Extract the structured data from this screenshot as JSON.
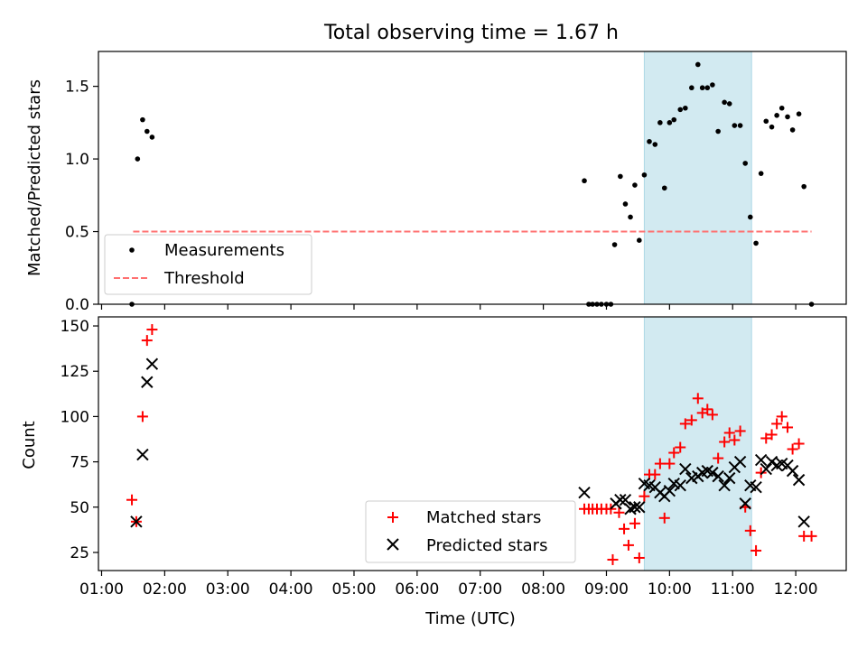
{
  "figure": {
    "title": "Total observing time = 1.67 h",
    "xlabel": "Time (UTC)"
  },
  "chart_data": [
    {
      "type": "scatter",
      "title": "Total observing time = 1.67 h",
      "ylabel": "Matched/Predicted stars",
      "xlabel": "",
      "x_unit": "hours UTC",
      "xlim": [
        0.95,
        12.8
      ],
      "ylim": [
        0,
        1.74
      ],
      "yticks": [
        0.0,
        0.5,
        1.0,
        1.5
      ],
      "ytick_labels": [
        "0.0",
        "0.5",
        "1.0",
        "1.5"
      ],
      "shaded_span": {
        "x_start": 9.6,
        "x_end": 11.3,
        "color": "#add8e6"
      },
      "threshold": {
        "name": "Threshold",
        "y": 0.5,
        "x_start": 1.5,
        "x_end": 12.25,
        "color": "#ff7070",
        "style": "dashed"
      },
      "series": [
        {
          "name": "Measurements",
          "color": "#000000",
          "marker": "dot",
          "points": [
            [
              1.48,
              0.0
            ],
            [
              1.57,
              1.0
            ],
            [
              1.65,
              1.27
            ],
            [
              1.72,
              1.19
            ],
            [
              1.8,
              1.15
            ],
            [
              8.65,
              0.85
            ],
            [
              8.72,
              0.0
            ],
            [
              8.78,
              0.0
            ],
            [
              8.85,
              0.0
            ],
            [
              8.92,
              0.0
            ],
            [
              9.0,
              0.0
            ],
            [
              9.07,
              0.0
            ],
            [
              9.13,
              0.41
            ],
            [
              9.22,
              0.88
            ],
            [
              9.3,
              0.69
            ],
            [
              9.38,
              0.6
            ],
            [
              9.45,
              0.82
            ],
            [
              9.52,
              0.44
            ],
            [
              9.6,
              0.89
            ],
            [
              9.68,
              1.12
            ],
            [
              9.77,
              1.1
            ],
            [
              9.85,
              1.25
            ],
            [
              9.92,
              0.8
            ],
            [
              10.0,
              1.25
            ],
            [
              10.07,
              1.27
            ],
            [
              10.17,
              1.34
            ],
            [
              10.25,
              1.35
            ],
            [
              10.35,
              1.49
            ],
            [
              10.45,
              1.65
            ],
            [
              10.52,
              1.49
            ],
            [
              10.6,
              1.49
            ],
            [
              10.68,
              1.51
            ],
            [
              10.77,
              1.19
            ],
            [
              10.87,
              1.39
            ],
            [
              10.95,
              1.38
            ],
            [
              11.03,
              1.23
            ],
            [
              11.12,
              1.23
            ],
            [
              11.2,
              0.97
            ],
            [
              11.28,
              0.6
            ],
            [
              11.37,
              0.42
            ],
            [
              11.45,
              0.9
            ],
            [
              11.53,
              1.26
            ],
            [
              11.62,
              1.22
            ],
            [
              11.7,
              1.3
            ],
            [
              11.78,
              1.35
            ],
            [
              11.87,
              1.29
            ],
            [
              11.95,
              1.2
            ],
            [
              12.05,
              1.31
            ],
            [
              12.13,
              0.81
            ],
            [
              12.25,
              0.0
            ]
          ]
        }
      ],
      "legend": {
        "position": "lower-left",
        "entries": [
          "Measurements",
          "Threshold"
        ]
      }
    },
    {
      "type": "scatter",
      "ylabel": "Count",
      "xlabel": "Time (UTC)",
      "x_unit": "hours UTC",
      "xlim": [
        0.95,
        12.8
      ],
      "ylim": [
        15,
        155
      ],
      "yticks": [
        25,
        50,
        75,
        100,
        125,
        150
      ],
      "ytick_labels": [
        "25",
        "50",
        "75",
        "100",
        "125",
        "150"
      ],
      "xticks": [
        1,
        2,
        3,
        4,
        5,
        6,
        7,
        8,
        9,
        10,
        11,
        12
      ],
      "xtick_labels": [
        "01:00",
        "02:00",
        "03:00",
        "04:00",
        "05:00",
        "06:00",
        "07:00",
        "08:00",
        "09:00",
        "10:00",
        "11:00",
        "12:00"
      ],
      "shaded_span": {
        "x_start": 9.6,
        "x_end": 11.3,
        "color": "#add8e6"
      },
      "series": [
        {
          "name": "Matched stars",
          "color": "#ff0000",
          "marker": "plus",
          "points": [
            [
              1.48,
              54
            ],
            [
              1.55,
              42
            ],
            [
              1.65,
              100
            ],
            [
              1.72,
              142
            ],
            [
              1.8,
              148
            ],
            [
              8.65,
              49
            ],
            [
              8.72,
              49
            ],
            [
              8.78,
              49
            ],
            [
              8.85,
              49
            ],
            [
              8.92,
              49
            ],
            [
              9.0,
              49
            ],
            [
              9.07,
              49
            ],
            [
              9.1,
              21
            ],
            [
              9.2,
              47
            ],
            [
              9.28,
              38
            ],
            [
              9.35,
              29
            ],
            [
              9.45,
              41
            ],
            [
              9.52,
              22
            ],
            [
              9.6,
              56
            ],
            [
              9.68,
              68
            ],
            [
              9.77,
              68
            ],
            [
              9.85,
              74
            ],
            [
              9.92,
              44
            ],
            [
              10.0,
              74
            ],
            [
              10.07,
              80
            ],
            [
              10.17,
              83
            ],
            [
              10.25,
              96
            ],
            [
              10.35,
              98
            ],
            [
              10.45,
              110
            ],
            [
              10.52,
              102
            ],
            [
              10.6,
              104
            ],
            [
              10.68,
              101
            ],
            [
              10.77,
              77
            ],
            [
              10.87,
              86
            ],
            [
              10.95,
              91
            ],
            [
              11.03,
              87
            ],
            [
              11.12,
              92
            ],
            [
              11.2,
              50
            ],
            [
              11.28,
              37
            ],
            [
              11.37,
              26
            ],
            [
              11.45,
              69
            ],
            [
              11.53,
              88
            ],
            [
              11.62,
              90
            ],
            [
              11.7,
              96
            ],
            [
              11.78,
              100
            ],
            [
              11.87,
              94
            ],
            [
              11.95,
              82
            ],
            [
              12.05,
              85
            ],
            [
              12.13,
              34
            ],
            [
              12.25,
              34
            ]
          ]
        },
        {
          "name": "Predicted stars",
          "color": "#000000",
          "marker": "x",
          "points": [
            [
              1.55,
              42
            ],
            [
              1.65,
              79
            ],
            [
              1.72,
              119
            ],
            [
              1.8,
              129
            ],
            [
              8.65,
              58
            ],
            [
              9.15,
              52
            ],
            [
              9.22,
              54
            ],
            [
              9.3,
              54
            ],
            [
              9.38,
              49
            ],
            [
              9.45,
              50
            ],
            [
              9.52,
              50
            ],
            [
              9.6,
              63
            ],
            [
              9.68,
              62
            ],
            [
              9.77,
              61
            ],
            [
              9.85,
              58
            ],
            [
              9.92,
              56
            ],
            [
              10.0,
              59
            ],
            [
              10.07,
              63
            ],
            [
              10.17,
              62
            ],
            [
              10.25,
              71
            ],
            [
              10.35,
              66
            ],
            [
              10.45,
              67
            ],
            [
              10.52,
              69
            ],
            [
              10.6,
              70
            ],
            [
              10.68,
              69
            ],
            [
              10.77,
              67
            ],
            [
              10.87,
              62
            ],
            [
              10.95,
              66
            ],
            [
              11.03,
              72
            ],
            [
              11.12,
              75
            ],
            [
              11.2,
              52
            ],
            [
              11.28,
              62
            ],
            [
              11.37,
              61
            ],
            [
              11.45,
              76
            ],
            [
              11.53,
              71
            ],
            [
              11.62,
              75
            ],
            [
              11.7,
              73
            ],
            [
              11.78,
              74
            ],
            [
              11.87,
              73
            ],
            [
              11.95,
              70
            ],
            [
              12.05,
              65
            ],
            [
              12.13,
              42
            ]
          ]
        }
      ],
      "legend": {
        "position": "lower-center",
        "entries": [
          "Matched stars",
          "Predicted stars"
        ]
      }
    }
  ]
}
